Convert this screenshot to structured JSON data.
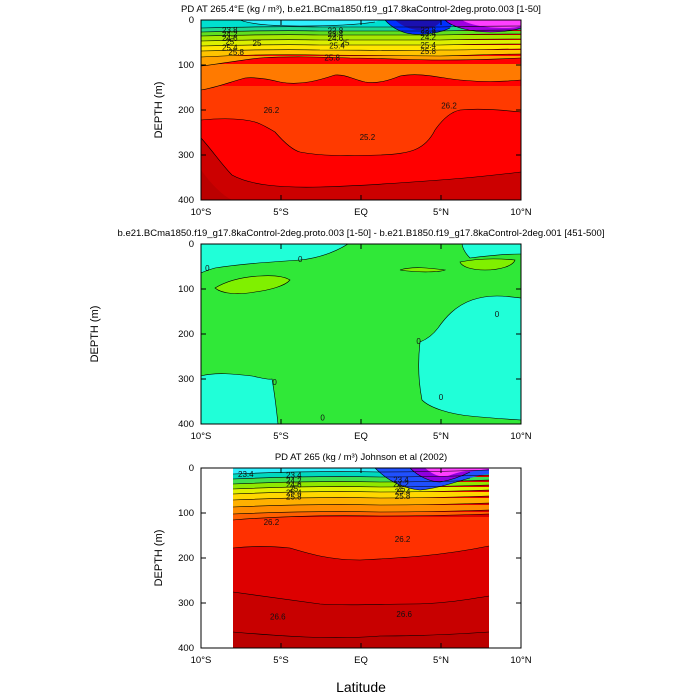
{
  "figure": {
    "xlabel": "Latitude",
    "xticks": [
      "10°S",
      "5°S",
      "EQ",
      "5°N",
      "10°N"
    ],
    "yticks": [
      "0",
      "100",
      "200",
      "300",
      "400"
    ]
  },
  "chart_data": [
    {
      "type": "heatmap",
      "title": "PD AT 265.4°E (kg / m³), b.e21.BCma1850.f19_g17.8kaControl-2deg.proto.003 [1-50]",
      "ylabel": "DEPTH (m)",
      "xlim": [
        -10,
        10
      ],
      "ylim": [
        400,
        0
      ],
      "contour_labels": [
        {
          "text": "23.8",
          "x": -8.2,
          "y": 22
        },
        {
          "text": "24.2",
          "x": -8.2,
          "y": 31
        },
        {
          "text": "24.6",
          "x": -8.2,
          "y": 40
        },
        {
          "text": "25",
          "x": -8.2,
          "y": 48
        },
        {
          "text": "25.4",
          "x": -8.2,
          "y": 61
        },
        {
          "text": "25",
          "x": -6.5,
          "y": 51
        },
        {
          "text": "25.8",
          "x": -7.8,
          "y": 71
        },
        {
          "text": "22.8",
          "x": -1.6,
          "y": 23
        },
        {
          "text": "23.4",
          "x": -1.6,
          "y": 31
        },
        {
          "text": "24.6",
          "x": -1.6,
          "y": 40
        },
        {
          "text": "25",
          "x": -1,
          "y": 50
        },
        {
          "text": "25.4",
          "x": -1.5,
          "y": 57
        },
        {
          "text": "25.8",
          "x": -1.8,
          "y": 83
        },
        {
          "text": "22.8",
          "x": 4.2,
          "y": 22
        },
        {
          "text": "23.4",
          "x": 4.2,
          "y": 29
        },
        {
          "text": "24.2",
          "x": 4.2,
          "y": 38
        },
        {
          "text": "25.4",
          "x": 4.2,
          "y": 56
        },
        {
          "text": "25.8",
          "x": 4.2,
          "y": 69
        },
        {
          "text": "26.2",
          "x": -5.6,
          "y": 200
        },
        {
          "text": "25.2",
          "x": 0.4,
          "y": 260
        },
        {
          "text": "26.2",
          "x": 5.5,
          "y": 190
        }
      ]
    },
    {
      "type": "heatmap",
      "title": "b.e21.BCma1850.f19_g17.8kaControl-2deg.proto.003 [1-50] - b.e21.B1850.f19_g17.8kaControl-2deg.001 [451-500]",
      "ylabel": "DEPTH (m)",
      "xlim": [
        -10,
        10
      ],
      "ylim": [
        400,
        0
      ],
      "contour_labels": [
        {
          "text": "0",
          "x": -9.6,
          "y": 53
        },
        {
          "text": "0",
          "x": -3.8,
          "y": 33
        },
        {
          "text": "0",
          "x": 8.5,
          "y": 155
        },
        {
          "text": "0",
          "x": 3.6,
          "y": 216
        },
        {
          "text": "0",
          "x": -5.4,
          "y": 307
        },
        {
          "text": "0",
          "x": 5,
          "y": 340
        },
        {
          "text": "0",
          "x": -2.4,
          "y": 385
        }
      ]
    },
    {
      "type": "heatmap",
      "title": "PD AT 265 (kg / m³) Johnson et al (2002)",
      "ylabel": "DEPTH (m)",
      "xlim": [
        -10,
        10
      ],
      "ylim": [
        400,
        0
      ],
      "data_xrange": [
        -8,
        8
      ],
      "contour_labels": [
        {
          "text": "23.4",
          "x": -7.2,
          "y": 13
        },
        {
          "text": "23.4",
          "x": -4.2,
          "y": 15
        },
        {
          "text": "24.2",
          "x": -4.2,
          "y": 28
        },
        {
          "text": "24.6",
          "x": -4.2,
          "y": 37
        },
        {
          "text": "25",
          "x": -4.2,
          "y": 45
        },
        {
          "text": "25.4",
          "x": -4.2,
          "y": 54
        },
        {
          "text": "25.8",
          "x": -4.2,
          "y": 63
        },
        {
          "text": "23.4",
          "x": 2.5,
          "y": 25
        },
        {
          "text": "24.2",
          "x": 2.5,
          "y": 35
        },
        {
          "text": "25",
          "x": 2.5,
          "y": 45
        },
        {
          "text": "25.4",
          "x": 2.6,
          "y": 52
        },
        {
          "text": "25.8",
          "x": 2.6,
          "y": 62
        },
        {
          "text": "26.2",
          "x": -5.6,
          "y": 120
        },
        {
          "text": "26.2",
          "x": 2.6,
          "y": 158
        },
        {
          "text": "26.6",
          "x": -5.2,
          "y": 330
        },
        {
          "text": "26.6",
          "x": 2.7,
          "y": 324
        }
      ]
    }
  ]
}
